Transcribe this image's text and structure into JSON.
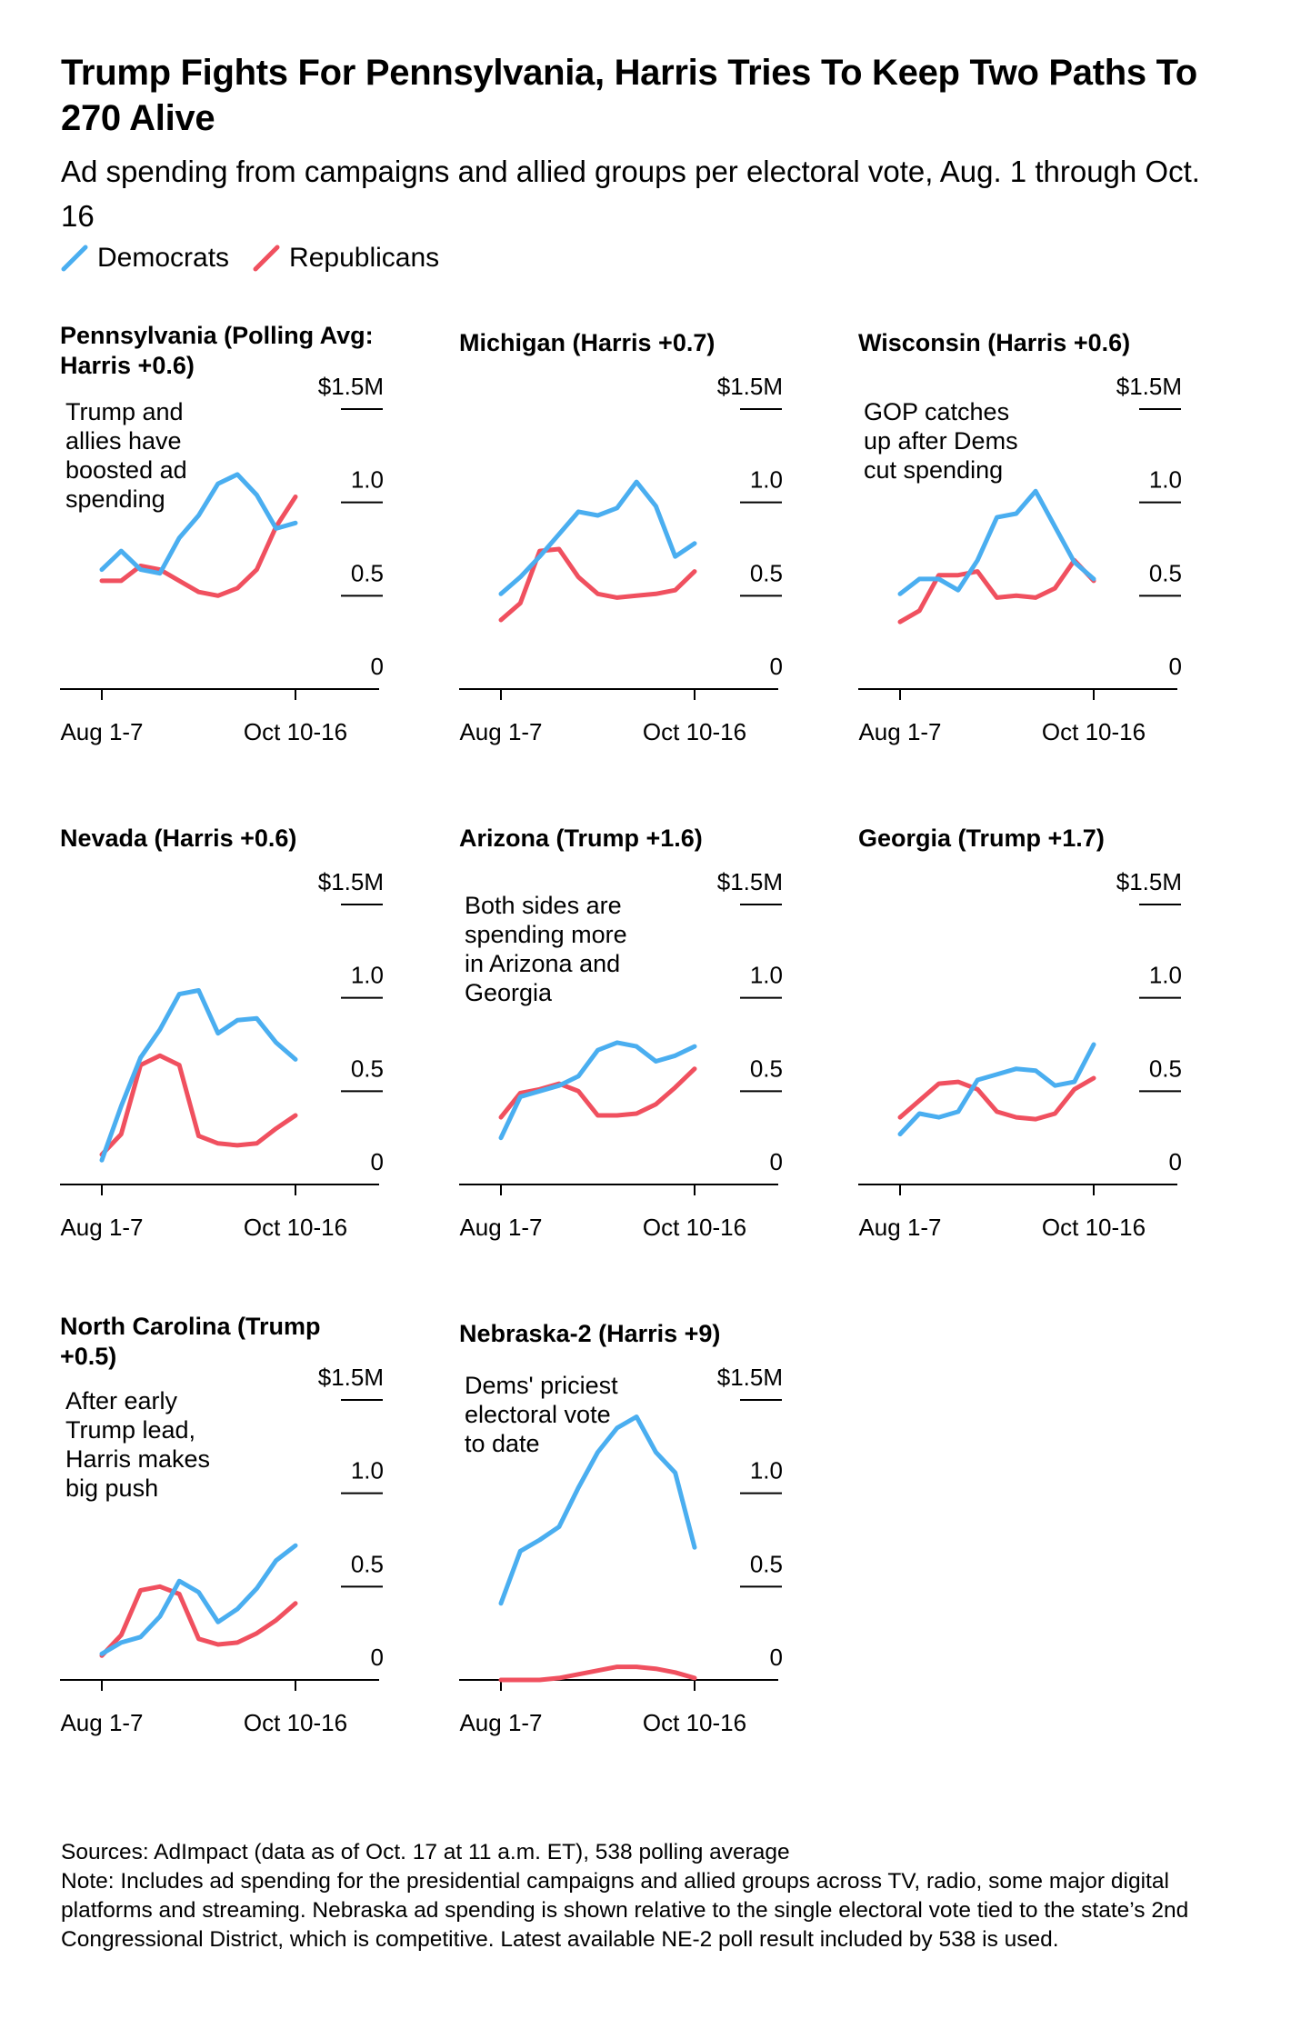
{
  "title": "Trump Fights For Pennsylvania, Harris Tries To Keep Two Paths To 270 Alive",
  "subtitle": "Ad spending from campaigns and allied groups per electoral vote, Aug. 1 through Oct. 16",
  "legend": [
    {
      "label": "Democrats",
      "color": "#4aaef0"
    },
    {
      "label": "Republicans",
      "color": "#f0505f"
    }
  ],
  "colors": {
    "democrats": "#4aaef0",
    "republicans": "#f0505f"
  },
  "chart_data": [
    {
      "type": "line",
      "title_lines": [
        "Pennsylvania (Polling Avg:",
        "Harris +0.6)"
      ],
      "annotation": [
        "Trump and",
        "allies have",
        "boosted ad",
        "spending"
      ],
      "xlabel": "",
      "ylabel": "",
      "x_tick_labels": [
        "Aug 1-7",
        "Oct 10-16"
      ],
      "y_tick_labels": [
        "$1.5M",
        "1.0",
        "0.5",
        "0"
      ],
      "ylim": [
        0,
        1.5
      ],
      "units": "millions of dollars per electoral vote",
      "series": [
        {
          "name": "Democrats",
          "values": [
            0.64,
            0.74,
            0.64,
            0.62,
            0.81,
            0.93,
            1.1,
            1.15,
            1.04,
            0.86,
            0.89
          ]
        },
        {
          "name": "Republicans",
          "values": [
            0.58,
            0.58,
            0.66,
            0.64,
            0.58,
            0.52,
            0.5,
            0.54,
            0.64,
            0.87,
            1.03
          ]
        }
      ]
    },
    {
      "type": "line",
      "title_lines": [
        "Michigan (Harris +0.7)"
      ],
      "annotation": [],
      "xlabel": "",
      "ylabel": "",
      "x_tick_labels": [
        "Aug 1-7",
        "Oct 10-16"
      ],
      "y_tick_labels": [
        "$1.5M",
        "1.0",
        "0.5",
        "0"
      ],
      "ylim": [
        0,
        1.5
      ],
      "units": "millions of dollars per electoral vote",
      "series": [
        {
          "name": "Democrats",
          "values": [
            0.51,
            0.6,
            0.71,
            0.83,
            0.95,
            0.93,
            0.97,
            1.11,
            0.98,
            0.71,
            0.78
          ]
        },
        {
          "name": "Republicans",
          "values": [
            0.37,
            0.46,
            0.74,
            0.75,
            0.6,
            0.51,
            0.49,
            0.5,
            0.51,
            0.53,
            0.63
          ]
        }
      ]
    },
    {
      "type": "line",
      "title_lines": [
        "Wisconsin (Harris +0.6)"
      ],
      "annotation": [
        "GOP catches",
        "up after Dems",
        "cut spending"
      ],
      "xlabel": "",
      "ylabel": "",
      "x_tick_labels": [
        "Aug 1-7",
        "Oct 10-16"
      ],
      "y_tick_labels": [
        "$1.5M",
        "1.0",
        "0.5",
        "0"
      ],
      "ylim": [
        0,
        1.5
      ],
      "units": "millions of dollars per electoral vote",
      "series": [
        {
          "name": "Democrats",
          "values": [
            0.51,
            0.59,
            0.59,
            0.53,
            0.69,
            0.92,
            0.94,
            1.06,
            0.87,
            0.68,
            0.59
          ]
        },
        {
          "name": "Republicans",
          "values": [
            0.36,
            0.42,
            0.61,
            0.61,
            0.63,
            0.49,
            0.5,
            0.49,
            0.54,
            0.69,
            0.58
          ]
        }
      ]
    },
    {
      "type": "line",
      "title_lines": [
        "Nevada (Harris +0.6)"
      ],
      "annotation": [],
      "xlabel": "",
      "ylabel": "",
      "x_tick_labels": [
        "Aug 1-7",
        "Oct 10-16"
      ],
      "y_tick_labels": [
        "$1.5M",
        "1.0",
        "0.5",
        "0"
      ],
      "ylim": [
        0,
        1.5
      ],
      "units": "millions of dollars per electoral vote",
      "series": [
        {
          "name": "Democrats",
          "values": [
            0.13,
            0.42,
            0.68,
            0.83,
            1.02,
            1.04,
            0.81,
            0.88,
            0.89,
            0.76,
            0.67
          ]
        },
        {
          "name": "Republicans",
          "values": [
            0.16,
            0.27,
            0.64,
            0.69,
            0.64,
            0.26,
            0.22,
            0.21,
            0.22,
            0.3,
            0.37
          ]
        }
      ]
    },
    {
      "type": "line",
      "title_lines": [
        "Arizona (Trump +1.6)"
      ],
      "annotation": [
        "Both sides are",
        "spending more",
        "in Arizona and",
        "Georgia"
      ],
      "xlabel": "",
      "ylabel": "",
      "x_tick_labels": [
        "Aug 1-7",
        "Oct 10-16"
      ],
      "y_tick_labels": [
        "$1.5M",
        "1.0",
        "0.5",
        "0"
      ],
      "ylim": [
        0,
        1.5
      ],
      "units": "millions of dollars per electoral vote",
      "series": [
        {
          "name": "Democrats",
          "values": [
            0.25,
            0.47,
            0.5,
            0.53,
            0.58,
            0.72,
            0.76,
            0.74,
            0.66,
            0.69,
            0.74
          ]
        },
        {
          "name": "Republicans",
          "values": [
            0.36,
            0.49,
            0.51,
            0.54,
            0.5,
            0.37,
            0.37,
            0.38,
            0.43,
            0.52,
            0.62
          ]
        }
      ]
    },
    {
      "type": "line",
      "title_lines": [
        "Georgia (Trump +1.7)"
      ],
      "annotation": [],
      "xlabel": "",
      "ylabel": "",
      "x_tick_labels": [
        "Aug 1-7",
        "Oct 10-16"
      ],
      "y_tick_labels": [
        "$1.5M",
        "1.0",
        "0.5",
        "0"
      ],
      "ylim": [
        0,
        1.5
      ],
      "units": "millions of dollars per electoral vote",
      "series": [
        {
          "name": "Democrats",
          "values": [
            0.27,
            0.38,
            0.36,
            0.39,
            0.56,
            0.59,
            0.62,
            0.61,
            0.53,
            0.55,
            0.75
          ]
        },
        {
          "name": "Republicans",
          "values": [
            0.36,
            0.45,
            0.54,
            0.55,
            0.51,
            0.39,
            0.36,
            0.35,
            0.38,
            0.51,
            0.57
          ]
        }
      ]
    },
    {
      "type": "line",
      "title_lines": [
        "North Carolina (Trump",
        "+0.5)"
      ],
      "annotation": [
        "After early",
        "Trump lead,",
        "Harris makes",
        "big push"
      ],
      "xlabel": "",
      "ylabel": "",
      "x_tick_labels": [
        "Aug 1-7",
        "Oct 10-16"
      ],
      "y_tick_labels": [
        "$1.5M",
        "1.0",
        "0.5",
        "0"
      ],
      "ylim": [
        0,
        1.5
      ],
      "units": "millions of dollars per electoral vote",
      "series": [
        {
          "name": "Democrats",
          "values": [
            0.14,
            0.2,
            0.23,
            0.34,
            0.53,
            0.47,
            0.31,
            0.38,
            0.49,
            0.64,
            0.72
          ]
        },
        {
          "name": "Republicans",
          "values": [
            0.13,
            0.24,
            0.48,
            0.5,
            0.46,
            0.22,
            0.19,
            0.2,
            0.25,
            0.32,
            0.41
          ]
        }
      ]
    },
    {
      "type": "line",
      "title_lines": [
        "Nebraska-2 (Harris +9)"
      ],
      "annotation": [
        "Dems' priciest",
        "electoral vote",
        "to date"
      ],
      "xlabel": "",
      "ylabel": "",
      "x_tick_labels": [
        "Aug 1-7",
        "Oct 10-16"
      ],
      "y_tick_labels": [
        "$1.5M",
        "1.0",
        "0.5",
        "0"
      ],
      "ylim": [
        0,
        1.5
      ],
      "units": "millions of dollars per electoral vote",
      "series": [
        {
          "name": "Democrats",
          "values": [
            0.41,
            0.69,
            0.75,
            0.82,
            1.03,
            1.22,
            1.35,
            1.41,
            1.22,
            1.11,
            0.71
          ]
        },
        {
          "name": "Republicans",
          "values": [
            0.0,
            0.0,
            0.0,
            0.01,
            0.03,
            0.05,
            0.07,
            0.07,
            0.06,
            0.04,
            0.01
          ]
        }
      ]
    }
  ],
  "sources": "Sources: AdImpact (data as of Oct. 17 at 11 a.m. ET), 538 polling average",
  "note": "Note: Includes ad spending for the presidential campaigns and allied groups across TV, radio, some major digital platforms and streaming. Nebraska ad spending is shown relative to the single electoral vote tied to the state’s 2nd Congressional District, which is competitive. Latest available NE-2 poll result included by 538 is used."
}
